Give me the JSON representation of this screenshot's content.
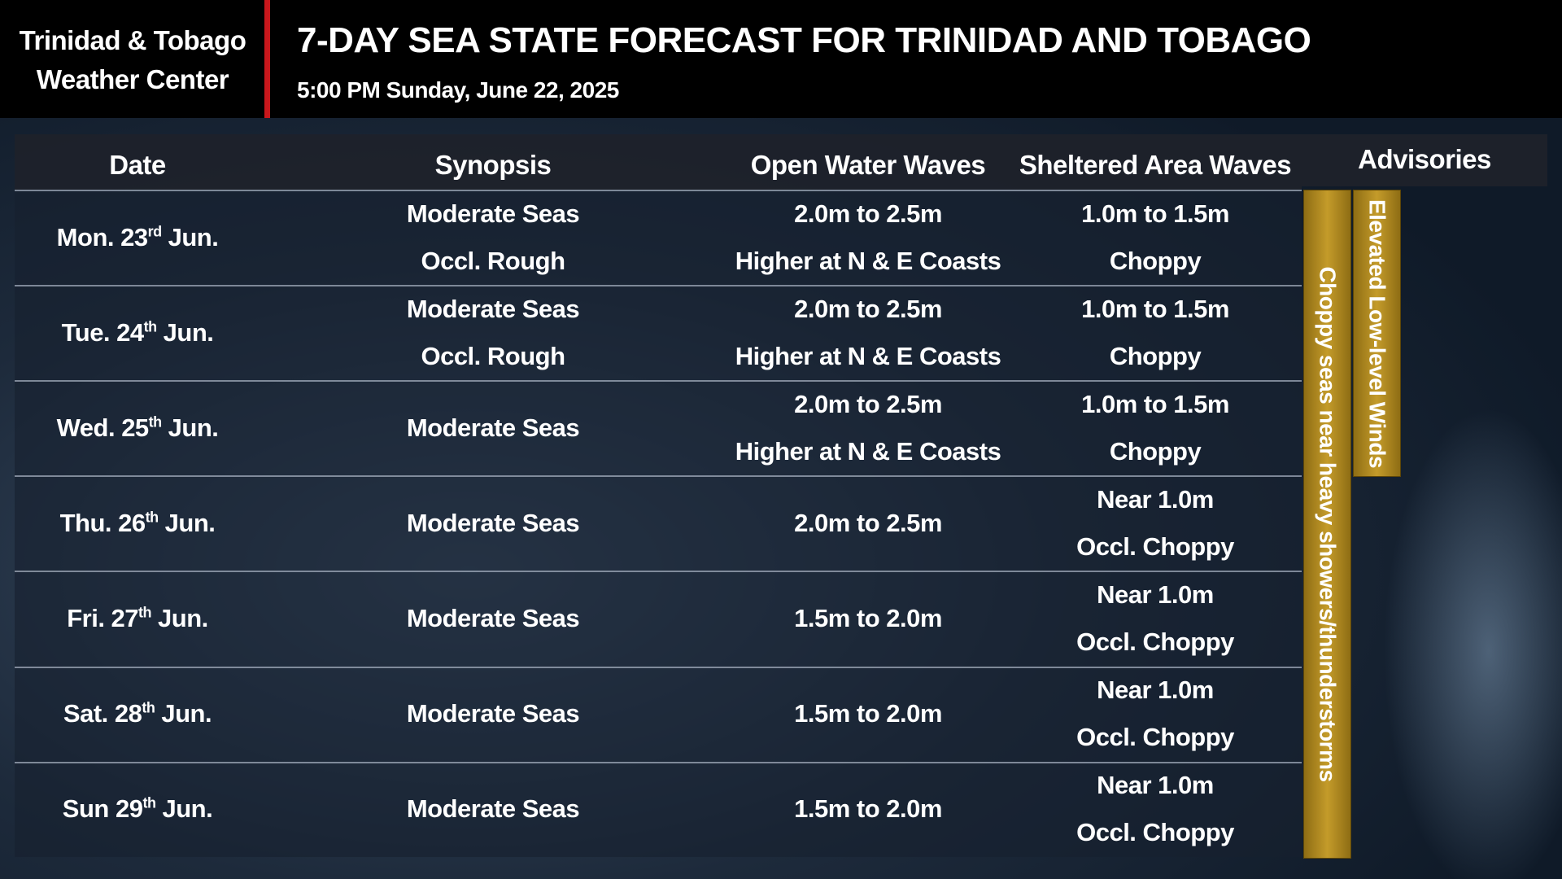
{
  "header": {
    "org_lines": [
      "Trinidad & Tobago",
      "Weather Center"
    ],
    "title": "7-DAY SEA STATE FORECAST FOR TRINIDAD AND TOBAGO",
    "subtitle": "5:00 PM Sunday, June 22, 2025"
  },
  "table": {
    "columns": [
      "Date",
      "Synopsis",
      "Open Water Waves",
      "Sheltered Area Waves",
      "Advisories"
    ],
    "rows": [
      {
        "date": {
          "day": "Mon. 23",
          "suffix": "rd",
          "month": "Jun."
        },
        "synopsis": [
          "Moderate Seas",
          "Occl. Rough"
        ],
        "open_water": [
          "2.0m to 2.5m",
          "Higher at N & E Coasts"
        ],
        "sheltered": [
          "1.0m to 1.5m",
          "Choppy"
        ]
      },
      {
        "date": {
          "day": "Tue. 24",
          "suffix": "th",
          "month": "Jun."
        },
        "synopsis": [
          "Moderate Seas",
          "Occl. Rough"
        ],
        "open_water": [
          "2.0m to 2.5m",
          "Higher at N & E Coasts"
        ],
        "sheltered": [
          "1.0m to 1.5m",
          "Choppy"
        ]
      },
      {
        "date": {
          "day": "Wed. 25",
          "suffix": "th",
          "month": "Jun."
        },
        "synopsis": [
          "Moderate Seas"
        ],
        "open_water": [
          "2.0m to 2.5m",
          "Higher at N & E Coasts"
        ],
        "sheltered": [
          "1.0m to 1.5m",
          "Choppy"
        ]
      },
      {
        "date": {
          "day": "Thu. 26",
          "suffix": "th",
          "month": "Jun."
        },
        "synopsis": [
          "Moderate Seas"
        ],
        "open_water": [
          "2.0m to 2.5m"
        ],
        "sheltered": [
          "Near 1.0m",
          "Occl. Choppy"
        ]
      },
      {
        "date": {
          "day": "Fri. 27",
          "suffix": "th",
          "month": "Jun."
        },
        "synopsis": [
          "Moderate Seas"
        ],
        "open_water": [
          "1.5m to 2.0m"
        ],
        "sheltered": [
          "Near 1.0m",
          "Occl. Choppy"
        ]
      },
      {
        "date": {
          "day": "Sat. 28",
          "suffix": "th",
          "month": "Jun."
        },
        "synopsis": [
          "Moderate Seas"
        ],
        "open_water": [
          "1.5m to 2.0m"
        ],
        "sheltered": [
          "Near 1.0m",
          "Occl. Choppy"
        ]
      },
      {
        "date": {
          "day": "Sun 29",
          "suffix": "th",
          "month": "Jun."
        },
        "synopsis": [
          "Moderate Seas"
        ],
        "open_water": [
          "1.5m to 2.0m"
        ],
        "sheltered": [
          "Near 1.0m",
          "Occl. Choppy"
        ]
      }
    ],
    "advisories": [
      {
        "text": "Choppy seas near heavy showers/thunderstorms",
        "first_row": 0,
        "last_row": 6
      },
      {
        "text": "Elevated Low-level Winds",
        "first_row": 0,
        "last_row": 2
      }
    ]
  }
}
